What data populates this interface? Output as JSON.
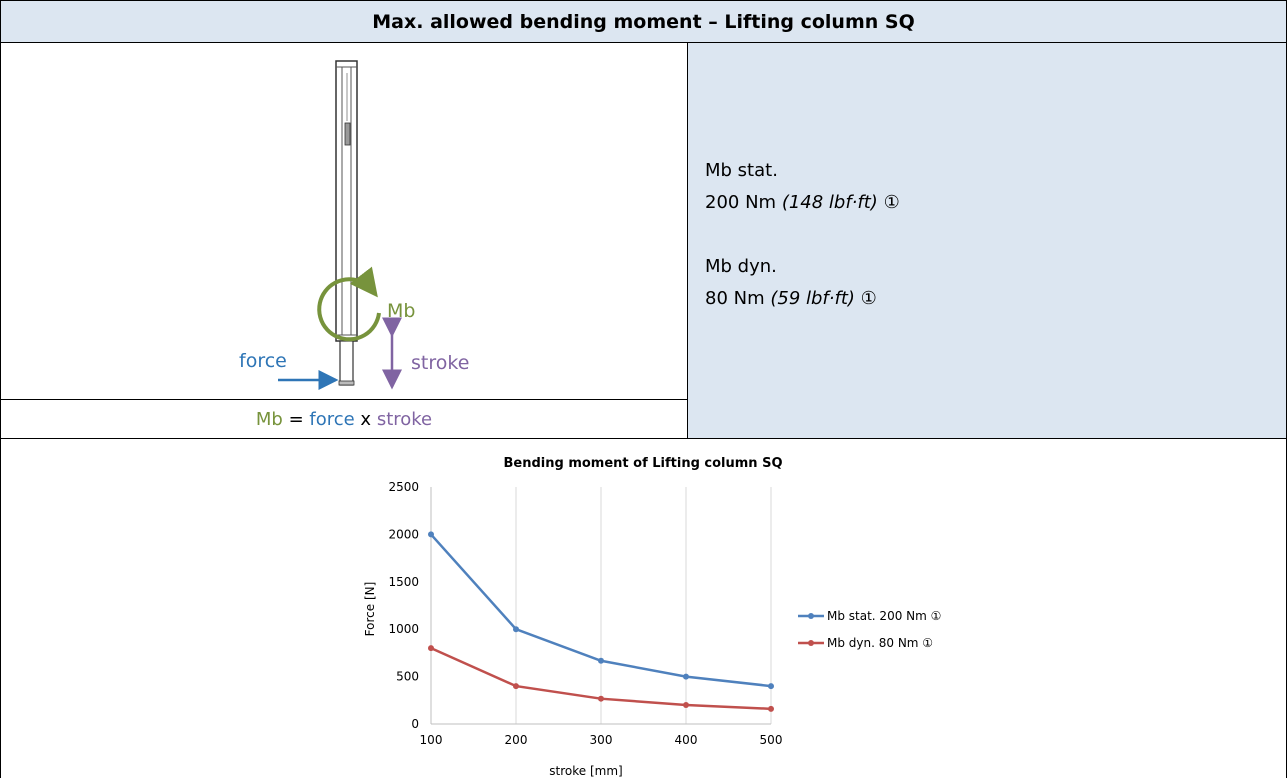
{
  "title": "Max. allowed bending moment – Lifting column SQ",
  "diagram": {
    "mb_label": "Mb",
    "force_label": "force",
    "stroke_label": "stroke"
  },
  "formula": {
    "mb": "Mb",
    "eq": " = ",
    "force": "force",
    "x": " x ",
    "stroke": "stroke"
  },
  "specs": {
    "static_name": "Mb stat.",
    "static_value": "200 Nm ",
    "static_imperial": "(148 lbf·ft)",
    "dynamic_name": "Mb dyn.",
    "dynamic_value": "80 Nm ",
    "dynamic_imperial": "(59 lbf·ft)",
    "note_mark": "①"
  },
  "colors": {
    "mb_green": "#77933c",
    "force_blue": "#2e75b6",
    "stroke_purple": "#8064a2",
    "header_bg": "#dce6f1",
    "series_stat": "#4f81bd",
    "series_dyn": "#c0504d"
  },
  "chart_data": {
    "type": "line",
    "title": "Bending moment of Lifting column SQ",
    "xlabel": "stroke [mm]",
    "ylabel": "Force [N]",
    "x": [
      100,
      200,
      300,
      400,
      500
    ],
    "ylim": [
      0,
      2500
    ],
    "yticks": [
      0,
      500,
      1000,
      1500,
      2000,
      2500
    ],
    "grid": "vertical",
    "legend": "right",
    "series": [
      {
        "name": "Mb stat. 200 Nm  ①",
        "values": [
          2000,
          1000,
          667,
          500,
          400
        ]
      },
      {
        "name": "Mb dyn. 80 Nm    ①",
        "values": [
          800,
          400,
          267,
          200,
          160
        ]
      }
    ]
  }
}
